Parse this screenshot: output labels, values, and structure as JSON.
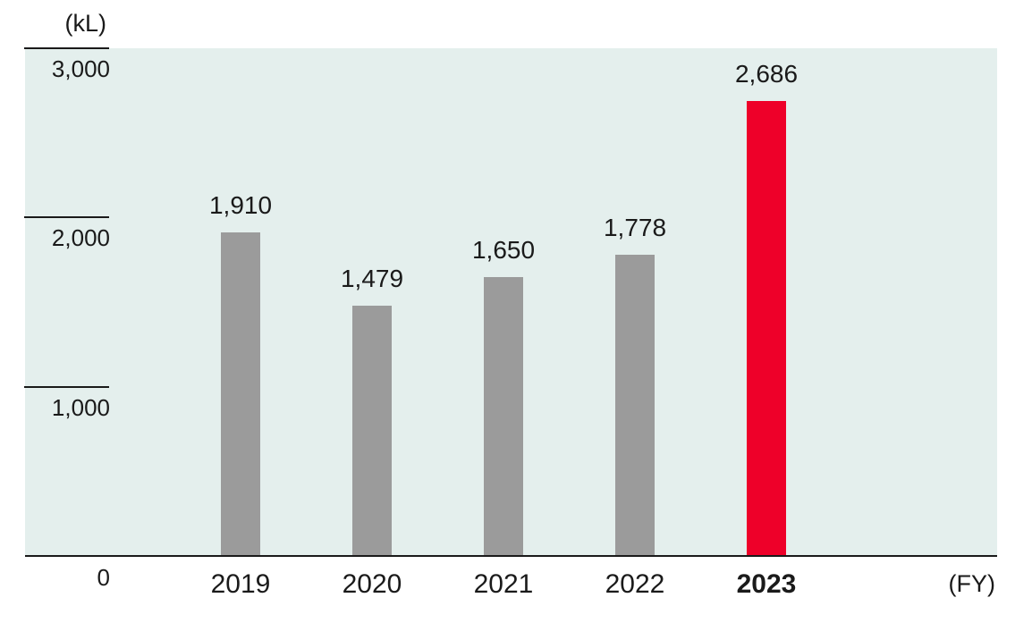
{
  "chart_data": {
    "type": "bar",
    "title": "",
    "unit_label": "(kL)",
    "x_axis_label": "(FY)",
    "categories": [
      "2019",
      "2020",
      "2021",
      "2022",
      "2023"
    ],
    "values": [
      1910,
      1479,
      1650,
      1778,
      2686
    ],
    "value_labels": [
      "1,910",
      "1,479",
      "1,650",
      "1,778",
      "2,686"
    ],
    "y_ticks": [
      0,
      1000,
      2000,
      3000
    ],
    "y_tick_labels": [
      "0",
      "1,000",
      "2,000",
      "3,000"
    ],
    "ylim": [
      0,
      3000
    ],
    "grid": false,
    "legend": false,
    "highlight_category": "2023",
    "colors": {
      "bar": "#9b9b9b",
      "highlight_bar": "#ee0029",
      "plot_background": "#e4efed",
      "axis": "#1a1a1a",
      "text": "#1a1a1a"
    }
  }
}
